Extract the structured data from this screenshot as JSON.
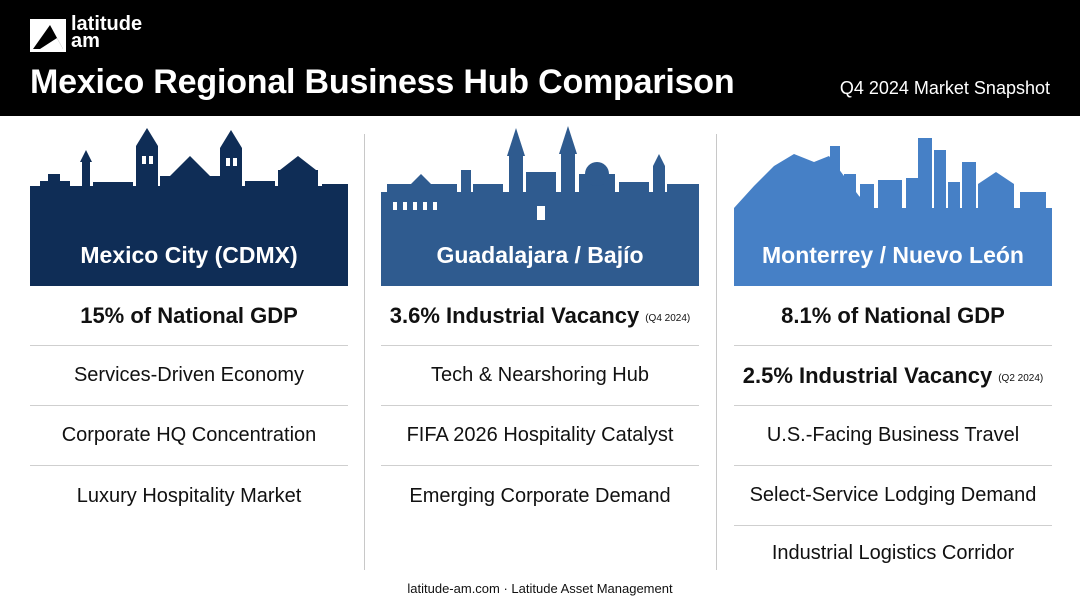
{
  "brand": {
    "line1": "latitude",
    "line2": "am"
  },
  "header": {
    "title": "Mexico Regional Business Hub Comparison",
    "subtitle": "Q4 2024 Market Snapshot"
  },
  "colors": {
    "header_bg": "#000000",
    "cdmx": "#0f2d56",
    "guadalajara": "#2f5b8f",
    "monterrey": "#4680c6"
  },
  "columns": [
    {
      "name": "Mexico City (CDMX)",
      "skyline_icon": "mexico-city-skyline",
      "items": [
        {
          "text": "15% of National GDP",
          "note": ""
        },
        {
          "text": "Services-Driven Economy",
          "note": ""
        },
        {
          "text": "Corporate HQ Concentration",
          "note": ""
        },
        {
          "text": "Luxury Hospitality Market",
          "note": ""
        }
      ]
    },
    {
      "name": "Guadalajara / Bajío",
      "skyline_icon": "guadalajara-skyline",
      "items": [
        {
          "text": "3.6% Industrial Vacancy",
          "note": "(Q4 2024)"
        },
        {
          "text": "Tech & Nearshoring Hub",
          "note": ""
        },
        {
          "text": "FIFA 2026 Hospitality Catalyst",
          "note": ""
        },
        {
          "text": "Emerging Corporate Demand",
          "note": ""
        }
      ]
    },
    {
      "name": "Monterrey / Nuevo León",
      "skyline_icon": "monterrey-skyline",
      "items": [
        {
          "text": "8.1% of National GDP",
          "note": ""
        },
        {
          "text": "2.5% Industrial Vacancy",
          "note": "(Q2 2024)"
        },
        {
          "text": "U.S.-Facing Business Travel",
          "note": ""
        },
        {
          "text": "Select-Service Lodging Demand",
          "note": ""
        },
        {
          "text": "Industrial Logistics Corridor",
          "note": ""
        }
      ]
    }
  ],
  "footer": "latitude-am.com · Latitude Asset Management"
}
